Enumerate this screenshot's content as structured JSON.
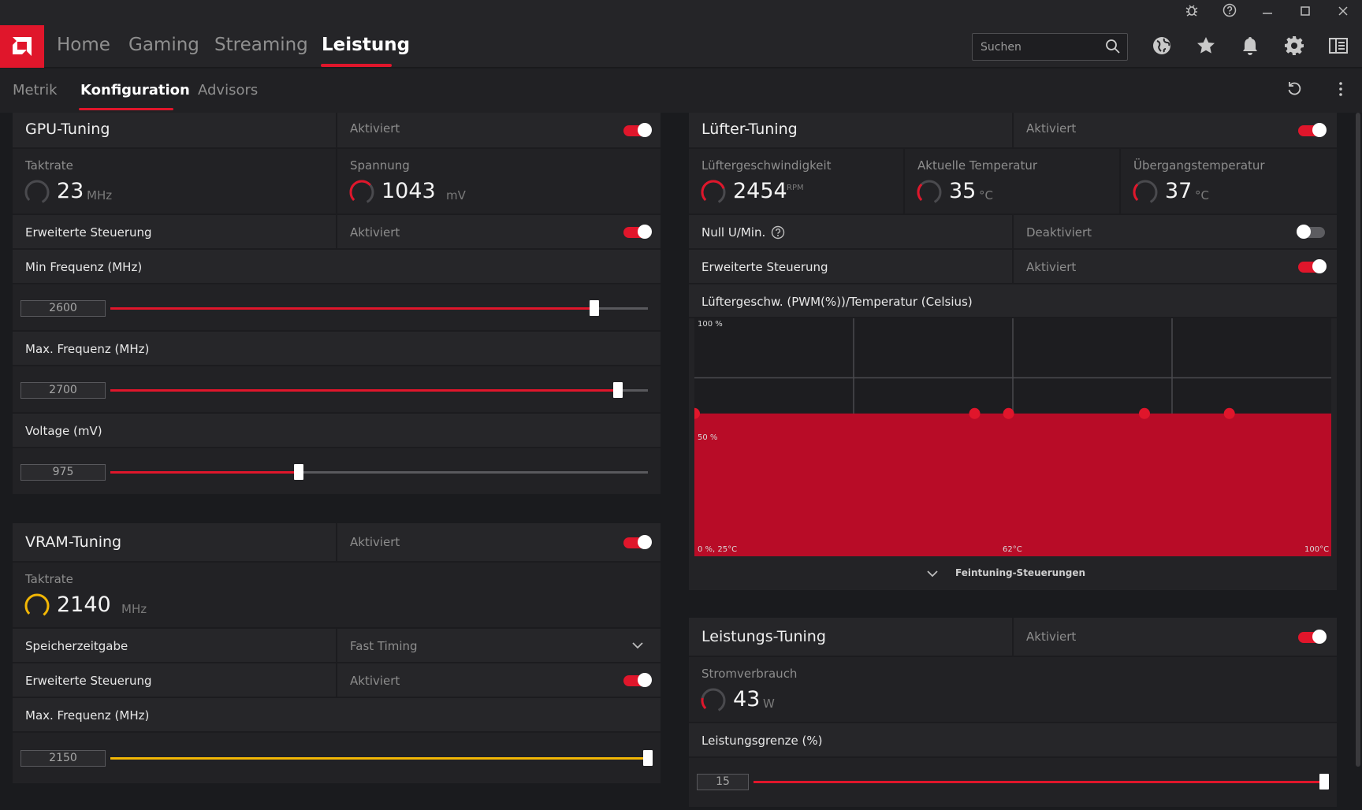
{
  "titlebar": {
    "icons": [
      "bug-icon",
      "help-icon",
      "minimize-icon",
      "maximize-icon",
      "close-icon"
    ]
  },
  "nav": {
    "tabs": [
      {
        "label": "Home"
      },
      {
        "label": "Gaming"
      },
      {
        "label": "Streaming"
      },
      {
        "label": "Leistung"
      }
    ],
    "active": "Leistung",
    "search_placeholder": "Suchen"
  },
  "subnav": {
    "tabs": [
      {
        "label": "Metrik"
      },
      {
        "label": "Konfiguration"
      },
      {
        "label": "Advisors"
      }
    ],
    "active": "Konfiguration"
  },
  "gpu_tuning": {
    "title": "GPU-Tuning",
    "status": "Aktiviert",
    "enabled": true,
    "metrics": [
      {
        "label": "Taktrate",
        "value": "23",
        "unit": "MHz"
      },
      {
        "label": "Spannung",
        "value": "1043",
        "unit": "mV"
      }
    ],
    "advanced": {
      "label": "Erweiterte Steuerung",
      "status": "Aktiviert"
    },
    "sliders": [
      {
        "label": "Min Frequenz (MHz)",
        "value": "2600",
        "fraction": 0.9
      },
      {
        "label": "Max. Frequenz (MHz)",
        "value": "2700",
        "fraction": 0.945
      },
      {
        "label": "Voltage (mV)",
        "value": "975",
        "fraction": 0.35
      }
    ]
  },
  "vram_tuning": {
    "title": "VRAM-Tuning",
    "status": "Aktiviert",
    "metric": {
      "label": "Taktrate",
      "value": "2140",
      "unit": "MHz"
    },
    "memory_timing": {
      "label": "Speicherzeitgabe",
      "value": "Fast Timing"
    },
    "advanced": {
      "label": "Erweiterte Steuerung",
      "status": "Aktiviert"
    },
    "slider": {
      "label": "Max. Frequenz (MHz)",
      "value": "2150",
      "fraction": 1.0
    }
  },
  "fan_tuning": {
    "title": "Lüfter-Tuning",
    "status": "Aktiviert",
    "metrics": [
      {
        "label": "Lüftergeschwindigkeit",
        "value": "2454",
        "unit": "RPM"
      },
      {
        "label": "Aktuelle Temperatur",
        "value": "35",
        "unit": "°C"
      },
      {
        "label": "Übergangstemperatur",
        "value": "37",
        "unit": "°C"
      }
    ],
    "zero_rpm": {
      "label": "Null U/Min.",
      "status": "Deaktiviert"
    },
    "advanced": {
      "label": "Erweiterte Steuerung",
      "status": "Aktiviert"
    },
    "curve_title": "Lüftergeschw. (PWM(%))/Temperatur (Celsius)",
    "curve_labels": {
      "y_top": "100 %",
      "y_mid": "50 %",
      "origin": "0 %, 25°C",
      "x_mid": "62°C",
      "x_max": "100°C"
    },
    "finetune_label": "Feintuning-Steuerungen"
  },
  "chart_data": {
    "type": "area",
    "x": [
      25,
      58,
      62,
      78,
      88
    ],
    "y": [
      60,
      60,
      60,
      60,
      60
    ],
    "xlim": [
      25,
      100
    ],
    "ylim": [
      0,
      100
    ],
    "xlabel": "Temperatur (Celsius)",
    "ylabel": "Lüftergeschw. (PWM(%))",
    "grid": true,
    "color": "#b80c27"
  },
  "power_tuning": {
    "title": "Leistungs-Tuning",
    "status": "Aktiviert",
    "metric": {
      "label": "Stromverbrauch",
      "value": "43",
      "unit": "W"
    },
    "slider": {
      "label": "Leistungsgrenze (%)",
      "value": "15",
      "fraction": 1.0
    }
  },
  "colors": {
    "accent": "#e0162b",
    "vram_accent": "#f2b705",
    "panel": "#232326"
  }
}
